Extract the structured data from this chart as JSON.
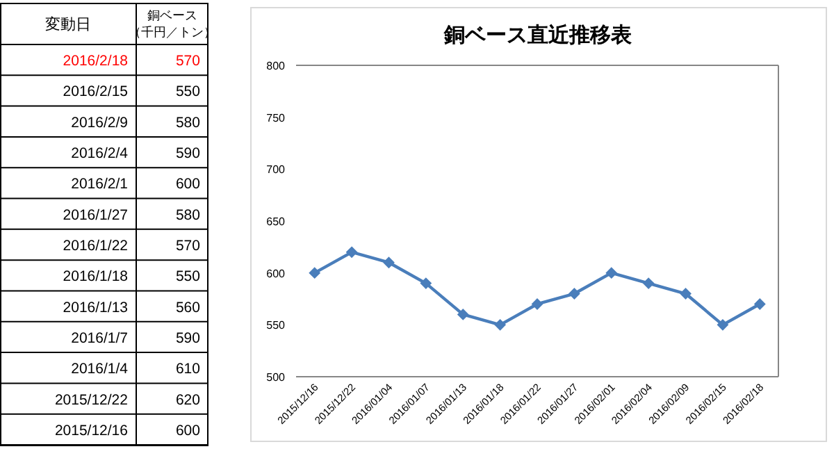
{
  "chart_data": [
    {
      "type": "other",
      "xlabel": "変動日",
      "ylabel": "銅ベース（千円／トン）",
      "data_labels": true,
      "categories": [
        "2016/2/18",
        "2016/2/15",
        "2016/2/9",
        "2016/2/4",
        "2016/2/1",
        "2016/1/27",
        "2016/1/22",
        "2016/1/18",
        "2016/1/13",
        "2016/1/7",
        "2016/1/4",
        "2015/12/22",
        "2015/12/16"
      ],
      "values": [
        570,
        550,
        580,
        590,
        600,
        580,
        570,
        550,
        560,
        590,
        610,
        620,
        600
      ],
      "colors": [
        "#ff0000",
        "#000000",
        "#000000",
        "#000000",
        "#000000",
        "#000000",
        "#000000",
        "#000000",
        "#000000",
        "#000000",
        "#000000",
        "#000000",
        "#000000"
      ]
    },
    {
      "type": "line",
      "title": "銅ベース直近推移表",
      "categories": [
        "2015/12/16",
        "2015/12/22",
        "2016/01/04",
        "2016/01/07",
        "2016/01/13",
        "2016/01/18",
        "2016/01/22",
        "2016/01/27",
        "2016/02/01",
        "2016/02/04",
        "2016/02/09",
        "2016/02/15",
        "2016/02/18"
      ],
      "series": [
        {
          "color": "#4a7ebb",
          "values": [
            600,
            620,
            610,
            590,
            560,
            550,
            570,
            580,
            600,
            590,
            580,
            550,
            570
          ]
        }
      ],
      "ylim": [
        500,
        800
      ],
      "yticks": [
        500,
        550,
        600,
        650,
        700,
        750,
        800
      ],
      "grid": false,
      "marker": "diamond",
      "line_style": "solid"
    }
  ]
}
